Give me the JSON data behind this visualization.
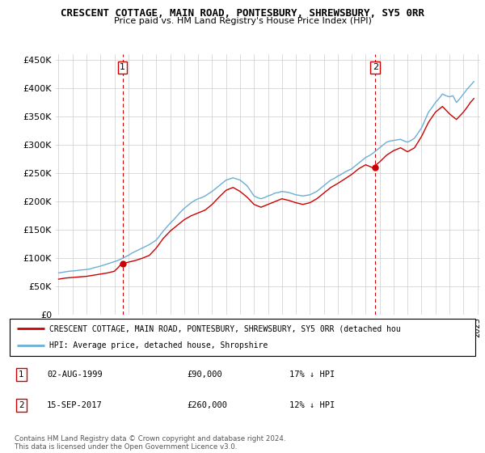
{
  "title": "CRESCENT COTTAGE, MAIN ROAD, PONTESBURY, SHREWSBURY, SY5 0RR",
  "subtitle": "Price paid vs. HM Land Registry's House Price Index (HPI)",
  "legend_line1": "CRESCENT COTTAGE, MAIN ROAD, PONTESBURY, SHREWSBURY, SY5 0RR (detached hou",
  "legend_line2": "HPI: Average price, detached house, Shropshire",
  "transaction1_date": "02-AUG-1999",
  "transaction1_price": "£90,000",
  "transaction1_hpi": "17% ↓ HPI",
  "transaction2_date": "15-SEP-2017",
  "transaction2_price": "£260,000",
  "transaction2_hpi": "12% ↓ HPI",
  "footnote": "Contains HM Land Registry data © Crown copyright and database right 2024.\nThis data is licensed under the Open Government Licence v3.0.",
  "hpi_color": "#6baed6",
  "price_color": "#cc0000",
  "background_color": "#ffffff",
  "grid_color": "#cccccc",
  "ylim": [
    0,
    460000
  ],
  "yticks": [
    0,
    50000,
    100000,
    150000,
    200000,
    250000,
    300000,
    350000,
    400000,
    450000
  ],
  "hpi_data_x": [
    1995.0,
    1995.25,
    1995.5,
    1995.75,
    1996.0,
    1996.25,
    1996.5,
    1996.75,
    1997.0,
    1997.25,
    1997.5,
    1997.75,
    1998.0,
    1998.25,
    1998.5,
    1998.75,
    1999.0,
    1999.25,
    1999.5,
    1999.75,
    2000.0,
    2000.25,
    2000.5,
    2000.75,
    2001.0,
    2001.25,
    2001.5,
    2001.75,
    2002.0,
    2002.25,
    2002.5,
    2002.75,
    2003.0,
    2003.25,
    2003.5,
    2003.75,
    2004.0,
    2004.25,
    2004.5,
    2004.75,
    2005.0,
    2005.25,
    2005.5,
    2005.75,
    2006.0,
    2006.25,
    2006.5,
    2006.75,
    2007.0,
    2007.25,
    2007.5,
    2007.75,
    2008.0,
    2008.25,
    2008.5,
    2008.75,
    2009.0,
    2009.25,
    2009.5,
    2009.75,
    2010.0,
    2010.25,
    2010.5,
    2010.75,
    2011.0,
    2011.25,
    2011.5,
    2011.75,
    2012.0,
    2012.25,
    2012.5,
    2012.75,
    2013.0,
    2013.25,
    2013.5,
    2013.75,
    2014.0,
    2014.25,
    2014.5,
    2014.75,
    2015.0,
    2015.25,
    2015.5,
    2015.75,
    2016.0,
    2016.25,
    2016.5,
    2016.75,
    2017.0,
    2017.25,
    2017.5,
    2017.75,
    2018.0,
    2018.25,
    2018.5,
    2018.75,
    2019.0,
    2019.25,
    2019.5,
    2019.75,
    2020.0,
    2020.25,
    2020.5,
    2020.75,
    2021.0,
    2021.25,
    2021.5,
    2021.75,
    2022.0,
    2022.25,
    2022.5,
    2022.75,
    2023.0,
    2023.25,
    2023.5,
    2023.75,
    2024.0,
    2024.25,
    2024.5,
    2024.75
  ],
  "hpi_data_y": [
    74000,
    75000,
    76000,
    77000,
    77500,
    78000,
    79000,
    79500,
    80000,
    81000,
    83000,
    84500,
    86000,
    88000,
    90000,
    92000,
    94000,
    96000,
    99000,
    102000,
    105000,
    109000,
    112000,
    115000,
    118000,
    121000,
    124000,
    128000,
    132000,
    140000,
    148000,
    155000,
    162000,
    168000,
    175000,
    182000,
    188000,
    193000,
    198000,
    202000,
    205000,
    207000,
    210000,
    214000,
    218000,
    223000,
    228000,
    233000,
    238000,
    240000,
    242000,
    240000,
    238000,
    233000,
    228000,
    219000,
    210000,
    207000,
    205000,
    207000,
    210000,
    212000,
    215000,
    216000,
    218000,
    217000,
    216000,
    214000,
    212000,
    211000,
    210000,
    211000,
    212000,
    215000,
    218000,
    223000,
    228000,
    233000,
    238000,
    241000,
    245000,
    248000,
    252000,
    255000,
    258000,
    263000,
    268000,
    273000,
    278000,
    281000,
    285000,
    290000,
    295000,
    300000,
    305000,
    307000,
    308000,
    309000,
    310000,
    307000,
    305000,
    308000,
    312000,
    321000,
    330000,
    344000,
    358000,
    366000,
    375000,
    382000,
    390000,
    387000,
    385000,
    387000,
    375000,
    382000,
    390000,
    398000,
    405000,
    412000
  ],
  "price_data_x": [
    1995.0,
    1995.25,
    1995.5,
    1995.75,
    1996.0,
    1996.25,
    1996.5,
    1996.75,
    1997.0,
    1997.25,
    1997.5,
    1997.75,
    1998.0,
    1998.25,
    1998.5,
    1998.75,
    1999.0,
    1999.25,
    1999.5,
    1999.75,
    2000.0,
    2000.25,
    2000.5,
    2000.75,
    2001.0,
    2001.25,
    2001.5,
    2001.75,
    2002.0,
    2002.25,
    2002.5,
    2002.75,
    2003.0,
    2003.25,
    2003.5,
    2003.75,
    2004.0,
    2004.25,
    2004.5,
    2004.75,
    2005.0,
    2005.25,
    2005.5,
    2005.75,
    2006.0,
    2006.25,
    2006.5,
    2006.75,
    2007.0,
    2007.25,
    2007.5,
    2007.75,
    2008.0,
    2008.25,
    2008.5,
    2008.75,
    2009.0,
    2009.25,
    2009.5,
    2009.75,
    2010.0,
    2010.25,
    2010.5,
    2010.75,
    2011.0,
    2011.25,
    2011.5,
    2011.75,
    2012.0,
    2012.25,
    2012.5,
    2012.75,
    2013.0,
    2013.25,
    2013.5,
    2013.75,
    2014.0,
    2014.25,
    2014.5,
    2014.75,
    2015.0,
    2015.25,
    2015.5,
    2015.75,
    2016.0,
    2016.25,
    2016.5,
    2016.75,
    2017.0,
    2017.25,
    2017.5,
    2017.75,
    2018.0,
    2018.25,
    2018.5,
    2018.75,
    2019.0,
    2019.25,
    2019.5,
    2019.75,
    2020.0,
    2020.25,
    2020.5,
    2020.75,
    2021.0,
    2021.25,
    2021.5,
    2021.75,
    2022.0,
    2022.25,
    2022.5,
    2022.75,
    2023.0,
    2023.25,
    2023.5,
    2023.75,
    2024.0,
    2024.25,
    2024.5,
    2024.75
  ],
  "price_data_y": [
    63000,
    64000,
    65000,
    65500,
    66000,
    66500,
    67000,
    67500,
    68000,
    69000,
    70000,
    71000,
    72000,
    73000,
    74000,
    75500,
    77000,
    83000,
    90000,
    91500,
    93000,
    94500,
    96000,
    98000,
    100000,
    102500,
    105000,
    111500,
    118000,
    126500,
    135000,
    141500,
    148000,
    153000,
    158000,
    163000,
    168000,
    171500,
    175000,
    177500,
    180000,
    182500,
    185000,
    190000,
    195000,
    201500,
    208000,
    214000,
    220000,
    222500,
    225000,
    221500,
    218000,
    213000,
    208000,
    201500,
    195000,
    192500,
    190000,
    192500,
    195000,
    197500,
    200000,
    202500,
    205000,
    203500,
    202000,
    200000,
    198000,
    196500,
    195000,
    196500,
    198000,
    201500,
    205000,
    210000,
    215000,
    220000,
    225000,
    228500,
    232000,
    236000,
    240000,
    244000,
    248000,
    253000,
    258000,
    261500,
    265000,
    262500,
    260000,
    265000,
    270000,
    276000,
    282000,
    286000,
    290000,
    292500,
    295000,
    291500,
    288000,
    291500,
    295000,
    305000,
    315000,
    327500,
    340000,
    349000,
    358000,
    363000,
    368000,
    361500,
    355000,
    350000,
    345000,
    351500,
    358000,
    366000,
    375000,
    382000
  ],
  "transaction1_x": 1999.58,
  "transaction1_y": 90000,
  "transaction2_x": 2017.7,
  "transaction2_y": 260000,
  "xmin": 1995,
  "xmax": 2025
}
